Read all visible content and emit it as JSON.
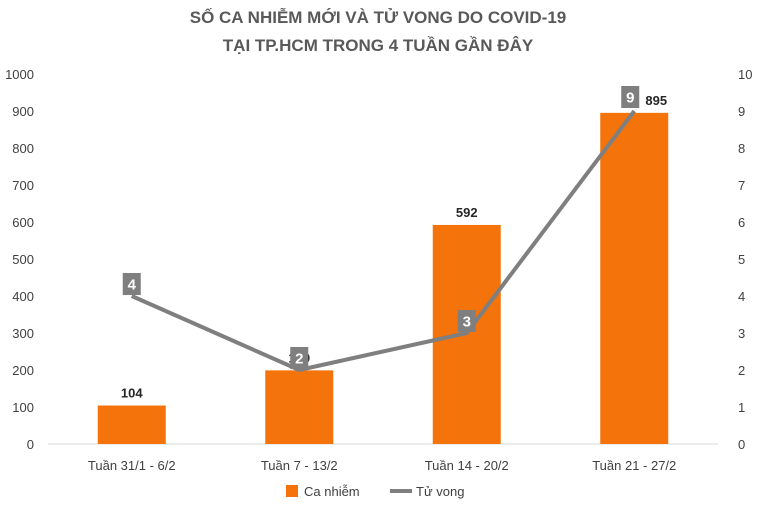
{
  "chart_data": {
    "type": "bar",
    "title_line1": "SỐ CA NHIỄM MỚI VÀ TỬ VONG DO COVID-19",
    "title_line2": "TẠI TP.HCM TRONG 4 TUẦN GẦN ĐÂY",
    "categories": [
      "Tuần 31/1 - 6/2",
      "Tuần 7 - 13/2",
      "Tuần 14 - 20/2",
      "Tuần 21 - 27/2"
    ],
    "series": [
      {
        "name": "Ca nhiễm",
        "type": "bar",
        "axis": "left",
        "values": [
          104,
          199,
          592,
          895
        ],
        "color": "#F4730A"
      },
      {
        "name": "Tử vong",
        "type": "line",
        "axis": "right",
        "values": [
          4,
          2,
          3,
          9
        ],
        "color": "#7F7F7F"
      }
    ],
    "y_left": {
      "min": 0,
      "max": 1000,
      "step": 100,
      "ticks": [
        "0",
        "100",
        "200",
        "300",
        "400",
        "500",
        "600",
        "700",
        "800",
        "900",
        "1000"
      ]
    },
    "y_right": {
      "min": 0,
      "max": 10,
      "step": 1,
      "ticks": [
        "0",
        "1",
        "2",
        "3",
        "4",
        "5",
        "6",
        "7",
        "8",
        "9",
        "10"
      ]
    },
    "grid": false,
    "legend_position": "bottom"
  }
}
